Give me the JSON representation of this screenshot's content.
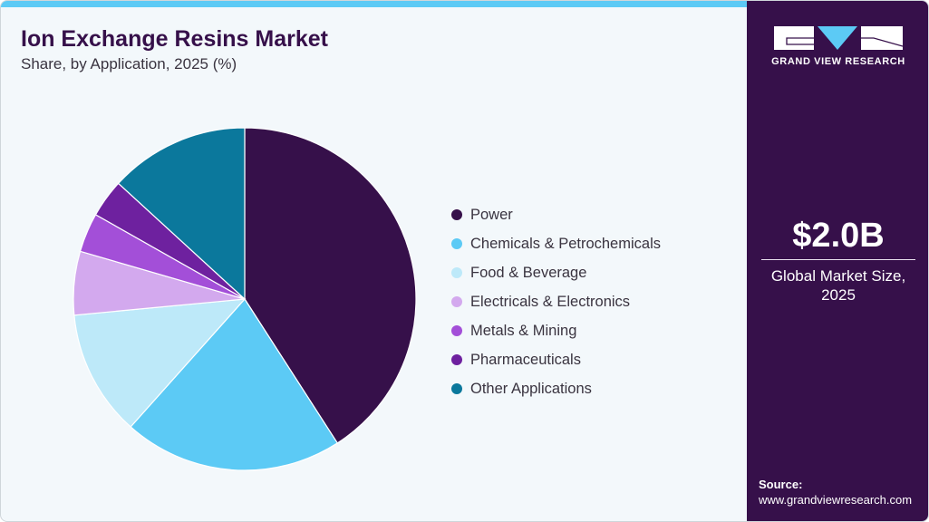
{
  "header": {
    "title": "Ion Exchange Resins Market",
    "subtitle": "Share, by Application, 2025 (%)"
  },
  "sidebar": {
    "brand": "GRAND VIEW RESEARCH",
    "market_size_value": "$2.0B",
    "market_size_label_line1": "Global Market Size,",
    "market_size_label_line2": "2025",
    "source_label": "Source:",
    "source_url": "www.grandviewresearch.com"
  },
  "colors": {
    "accent": "#5ccaf5",
    "brand_dark": "#36104a",
    "background": "#f3f8fb"
  },
  "legend": [
    {
      "label": "Power",
      "color": "#36104a"
    },
    {
      "label": "Chemicals & Petrochemicals",
      "color": "#5ccaf5"
    },
    {
      "label": "Food & Beverage",
      "color": "#bde9f9"
    },
    {
      "label": "Electricals & Electronics",
      "color": "#d3a9ee"
    },
    {
      "label": "Metals & Mining",
      "color": "#a34fd8"
    },
    {
      "label": "Pharmaceuticals",
      "color": "#6e219f"
    },
    {
      "label": "Other Applications",
      "color": "#0b789c"
    }
  ],
  "chart_data": {
    "type": "pie",
    "title": "Ion Exchange Resins Market",
    "subtitle": "Share, by Application, 2025 (%)",
    "categories": [
      "Power",
      "Chemicals & Petrochemicals",
      "Food & Beverage",
      "Electricals & Electronics",
      "Metals & Mining",
      "Pharmaceuticals",
      "Other Applications"
    ],
    "values": [
      40.9,
      20.7,
      11.9,
      6.0,
      3.7,
      3.6,
      13.2
    ],
    "colors": [
      "#36104a",
      "#5ccaf5",
      "#bde9f9",
      "#d3a9ee",
      "#a34fd8",
      "#6e219f",
      "#0b789c"
    ],
    "start_angle_deg": 0,
    "direction": "clockwise",
    "legend_position": "right",
    "data_labels": false
  }
}
